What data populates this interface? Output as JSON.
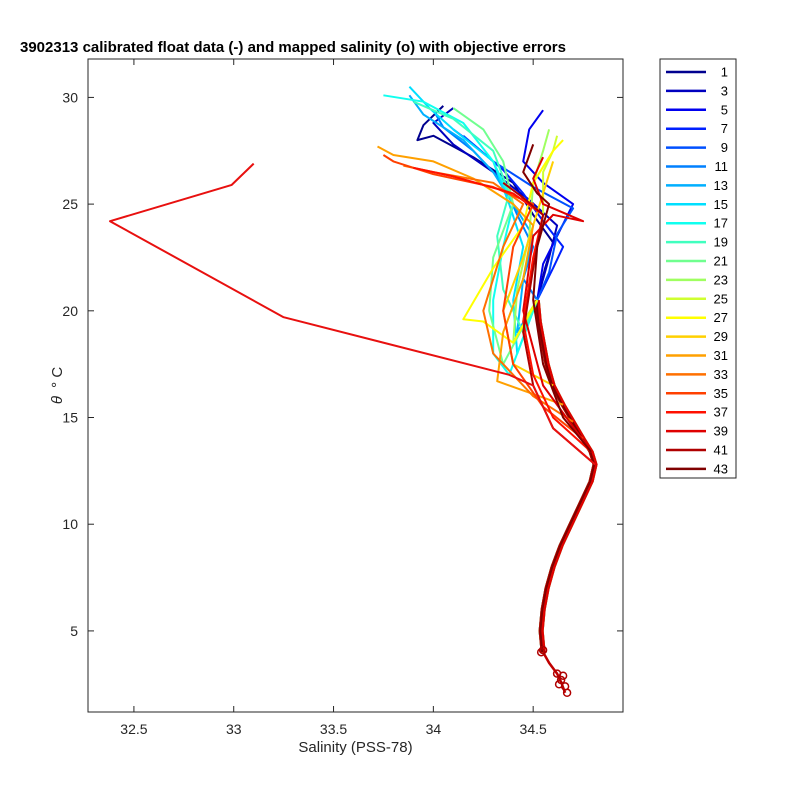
{
  "chart_data": {
    "type": "line",
    "title": "3902313 calibrated float data (-) and mapped salinity (o) with objective errors",
    "xlabel": "Salinity (PSS-78)",
    "ylabel_symbol": "θ",
    "ylabel_unit": "° C",
    "xlim": [
      32.27,
      34.95
    ],
    "ylim": [
      1.2,
      31.8
    ],
    "xticks": [
      32.5,
      33,
      33.5,
      34,
      34.5
    ],
    "xtick_labels": [
      "32.5",
      "33",
      "33.5",
      "34",
      "34.5"
    ],
    "yticks": [
      5,
      10,
      15,
      20,
      25,
      30
    ],
    "ytick_labels": [
      "5",
      "10",
      "15",
      "20",
      "25",
      "30"
    ],
    "grid": false,
    "legend_position": "outside-right",
    "legend": {
      "labels": [
        "1",
        "3",
        "5",
        "7",
        "9",
        "11",
        "13",
        "15",
        "17",
        "19",
        "21",
        "23",
        "25",
        "27",
        "29",
        "31",
        "33",
        "35",
        "37",
        "39",
        "41",
        "43"
      ],
      "colors": [
        "#00008f",
        "#0000bf",
        "#0000ef",
        "#0020ff",
        "#0050ff",
        "#0080ff",
        "#00afff",
        "#00dfff",
        "#10ffef",
        "#40ffbf",
        "#70ff8f",
        "#9fff60",
        "#cfff30",
        "#ffff00",
        "#ffd000",
        "#ffa000",
        "#ff7000",
        "#ff4000",
        "#ff1000",
        "#df0000",
        "#af0000",
        "#800000"
      ]
    },
    "deep_profile": [
      [
        34.55,
        4.0
      ],
      [
        34.54,
        5.0
      ],
      [
        34.55,
        6.0
      ],
      [
        34.57,
        7.0
      ],
      [
        34.6,
        8.0
      ],
      [
        34.64,
        9.0
      ],
      [
        34.69,
        10.0
      ],
      [
        34.74,
        11.0
      ],
      [
        34.79,
        12.0
      ],
      [
        34.81,
        12.8
      ],
      [
        34.79,
        13.4
      ],
      [
        34.75,
        14.0
      ],
      [
        34.7,
        14.8
      ],
      [
        34.65,
        15.6
      ],
      [
        34.6,
        16.5
      ],
      [
        34.57,
        17.5
      ],
      [
        34.55,
        18.5
      ],
      [
        34.53,
        19.5
      ],
      [
        34.52,
        20.5
      ]
    ],
    "deep_tail": [
      [
        34.55,
        4.0
      ],
      [
        34.58,
        3.5
      ],
      [
        34.62,
        3.0
      ],
      [
        34.64,
        2.6
      ],
      [
        34.66,
        2.1
      ]
    ],
    "shallow_profiles": [
      [
        [
          34.52,
          20.5
        ],
        [
          34.56,
          22.0
        ],
        [
          34.6,
          23.2
        ],
        [
          34.5,
          24.5
        ],
        [
          34.4,
          26.0
        ],
        [
          34.2,
          27.2
        ],
        [
          34.0,
          28.2
        ],
        [
          33.92,
          28.0
        ],
        [
          33.95,
          28.7
        ],
        [
          34.05,
          29.6
        ]
      ],
      [
        [
          34.52,
          20.5
        ],
        [
          34.58,
          22.5
        ],
        [
          34.62,
          24.0
        ],
        [
          34.48,
          25.2
        ],
        [
          34.3,
          26.5
        ],
        [
          34.1,
          27.8
        ],
        [
          34.0,
          28.8
        ],
        [
          34.1,
          29.5
        ]
      ],
      [
        [
          34.52,
          20.5
        ],
        [
          34.55,
          22.2
        ],
        [
          34.62,
          23.5
        ],
        [
          34.7,
          25.0
        ],
        [
          34.55,
          26.0
        ],
        [
          34.45,
          27.0
        ],
        [
          34.48,
          28.5
        ],
        [
          34.55,
          29.4
        ]
      ],
      [
        [
          34.52,
          20.5
        ],
        [
          34.6,
          22.0
        ],
        [
          34.65,
          23.0
        ],
        [
          34.55,
          24.2
        ],
        [
          34.45,
          25.5
        ],
        [
          34.35,
          26.6
        ],
        [
          34.2,
          27.8
        ],
        [
          34.1,
          28.5
        ]
      ],
      [
        [
          34.52,
          20.5
        ],
        [
          34.58,
          21.8
        ],
        [
          34.62,
          23.6
        ],
        [
          34.7,
          24.8
        ],
        [
          34.5,
          25.8
        ],
        [
          34.3,
          27.0
        ],
        [
          34.15,
          28.2
        ]
      ],
      [
        [
          34.52,
          20.5
        ],
        [
          34.45,
          21.5
        ],
        [
          34.5,
          23.0
        ],
        [
          34.42,
          24.5
        ],
        [
          34.35,
          26.0
        ],
        [
          34.2,
          27.5
        ],
        [
          34.05,
          28.6
        ],
        [
          34.0,
          29.4
        ]
      ],
      [
        [
          34.52,
          20.5
        ],
        [
          34.42,
          19.0
        ],
        [
          34.45,
          21.5
        ],
        [
          34.5,
          23.5
        ],
        [
          34.4,
          25.0
        ],
        [
          34.3,
          26.5
        ],
        [
          34.15,
          28.0
        ],
        [
          33.95,
          29.2
        ],
        [
          33.88,
          30.1
        ]
      ],
      [
        [
          34.52,
          20.5
        ],
        [
          34.42,
          18.0
        ],
        [
          34.4,
          20.5
        ],
        [
          34.45,
          23.0
        ],
        [
          34.38,
          25.0
        ],
        [
          34.3,
          27.0
        ],
        [
          34.1,
          28.5
        ],
        [
          33.98,
          29.5
        ],
        [
          33.88,
          30.5
        ]
      ],
      [
        [
          34.52,
          20.5
        ],
        [
          34.38,
          17.0
        ],
        [
          34.3,
          18.0
        ],
        [
          34.3,
          20.5
        ],
        [
          34.35,
          23.0
        ],
        [
          34.4,
          25.0
        ],
        [
          34.3,
          27.0
        ],
        [
          34.15,
          28.8
        ],
        [
          33.95,
          29.8
        ],
        [
          33.75,
          30.1
        ]
      ],
      [
        [
          34.52,
          20.5
        ],
        [
          34.45,
          19.0
        ],
        [
          34.35,
          21.0
        ],
        [
          34.32,
          23.5
        ],
        [
          34.38,
          25.5
        ],
        [
          34.3,
          27.5
        ],
        [
          34.1,
          29.0
        ],
        [
          33.9,
          29.8
        ]
      ],
      [
        [
          34.52,
          20.5
        ],
        [
          34.35,
          17.5
        ],
        [
          34.28,
          20.0
        ],
        [
          34.3,
          22.5
        ],
        [
          34.4,
          25.0
        ],
        [
          34.35,
          27.0
        ],
        [
          34.25,
          28.5
        ],
        [
          34.1,
          29.5
        ]
      ],
      [
        [
          34.52,
          20.5
        ],
        [
          34.4,
          18.5
        ],
        [
          34.42,
          21.0
        ],
        [
          34.48,
          23.5
        ],
        [
          34.5,
          26.0
        ],
        [
          34.55,
          27.5
        ],
        [
          34.58,
          28.5
        ]
      ],
      [
        [
          34.52,
          20.5
        ],
        [
          34.45,
          19.5
        ],
        [
          34.5,
          22.0
        ],
        [
          34.55,
          24.5
        ],
        [
          34.55,
          26.5
        ],
        [
          34.6,
          27.5
        ],
        [
          34.62,
          28.2
        ]
      ],
      [
        [
          34.52,
          20.5
        ],
        [
          34.4,
          18.5
        ],
        [
          34.25,
          19.5
        ],
        [
          34.15,
          19.6
        ],
        [
          34.3,
          22.0
        ],
        [
          34.45,
          24.0
        ],
        [
          34.5,
          26.0
        ],
        [
          34.6,
          27.5
        ],
        [
          34.65,
          28.0
        ]
      ],
      [
        [
          34.6,
          16.5
        ],
        [
          34.4,
          17.5
        ],
        [
          34.35,
          20.0
        ],
        [
          34.45,
          22.5
        ],
        [
          34.55,
          25.5
        ],
        [
          34.6,
          27.0
        ]
      ],
      [
        [
          34.65,
          15.6
        ],
        [
          34.32,
          16.7
        ],
        [
          34.35,
          19.0
        ],
        [
          34.45,
          21.5
        ],
        [
          34.5,
          24.0
        ],
        [
          34.4,
          25.0
        ],
        [
          34.2,
          26.2
        ],
        [
          34.0,
          27.0
        ],
        [
          33.8,
          27.3
        ],
        [
          33.72,
          27.7
        ]
      ],
      [
        [
          34.7,
          14.8
        ],
        [
          34.5,
          16.0
        ],
        [
          34.3,
          18.0
        ],
        [
          34.25,
          20.0
        ],
        [
          34.35,
          23.0
        ],
        [
          34.45,
          25.0
        ],
        [
          34.3,
          26.0
        ],
        [
          34.0,
          26.5
        ],
        [
          33.85,
          26.8
        ]
      ],
      [
        [
          34.75,
          14.0
        ],
        [
          34.55,
          15.5
        ],
        [
          34.4,
          17.5
        ],
        [
          34.35,
          20.0
        ],
        [
          34.4,
          23.0
        ],
        [
          34.5,
          25.0
        ],
        [
          34.3,
          25.8
        ],
        [
          34.0,
          26.4
        ],
        [
          33.8,
          27.0
        ],
        [
          33.75,
          27.3
        ]
      ],
      [
        [
          34.79,
          13.4
        ],
        [
          34.6,
          15.0
        ],
        [
          34.5,
          17.0
        ],
        [
          34.45,
          19.5
        ],
        [
          34.5,
          22.5
        ],
        [
          34.55,
          24.5
        ],
        [
          34.4,
          25.5
        ],
        [
          34.1,
          26.3
        ],
        [
          33.9,
          26.7
        ]
      ],
      [
        [
          34.79,
          13.4
        ],
        [
          34.55,
          16.5
        ],
        [
          34.45,
          20.0
        ],
        [
          34.5,
          23.5
        ],
        [
          34.6,
          24.5
        ],
        [
          34.75,
          24.2
        ],
        [
          34.55,
          25.0
        ],
        [
          34.5,
          26.2
        ],
        [
          34.55,
          27.2
        ]
      ],
      [
        [
          34.81,
          12.8
        ],
        [
          34.6,
          14.5
        ],
        [
          34.5,
          16.5
        ],
        [
          34.45,
          19.0
        ],
        [
          34.5,
          22.0
        ],
        [
          34.55,
          24.5
        ],
        [
          34.45,
          25.3
        ],
        [
          34.35,
          26.0
        ]
      ],
      [
        [
          34.79,
          13.4
        ],
        [
          34.65,
          15.0
        ],
        [
          34.55,
          17.5
        ],
        [
          34.5,
          20.5
        ],
        [
          34.52,
          23.0
        ],
        [
          34.58,
          25.0
        ],
        [
          34.52,
          25.5
        ],
        [
          34.45,
          26.5
        ],
        [
          34.5,
          27.8
        ]
      ]
    ],
    "outlier_profile": [
      [
        34.81,
        12.8
      ],
      [
        34.6,
        14.5
      ],
      [
        34.5,
        16.5
      ],
      [
        34.38,
        17.0
      ],
      [
        33.25,
        19.7
      ],
      [
        32.38,
        24.2
      ],
      [
        32.99,
        25.9
      ],
      [
        33.1,
        26.9
      ]
    ],
    "mapped_markers": [
      [
        34.55,
        4.1
      ],
      [
        34.54,
        4.0
      ],
      [
        34.62,
        3.0
      ],
      [
        34.64,
        2.7
      ],
      [
        34.66,
        2.4
      ],
      [
        34.67,
        2.1
      ],
      [
        34.65,
        2.9
      ],
      [
        34.63,
        2.5
      ]
    ]
  }
}
